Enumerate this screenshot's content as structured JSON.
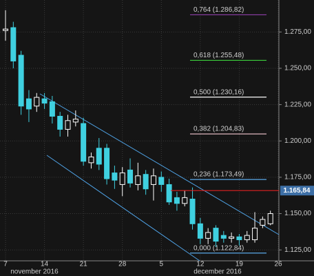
{
  "chart_data": {
    "type": "candlestick",
    "categories": [
      "7",
      null,
      null,
      null,
      null,
      "14",
      null,
      null,
      null,
      null,
      "21",
      null,
      null,
      null,
      null,
      "28",
      null,
      null,
      null,
      null,
      "5",
      null,
      null,
      null,
      null,
      "12",
      null,
      null,
      null,
      null,
      "19",
      null,
      null,
      null,
      null,
      "26"
    ],
    "x_group_labels": [
      "november 2016",
      "december 2016"
    ],
    "open": [
      1.276,
      1.278,
      1.259,
      1.229,
      1.224,
      1.229,
      1.227,
      1.217,
      1.208,
      1.213,
      1.212,
      1.185,
      1.195,
      1.195,
      1.178,
      1.17,
      1.18,
      1.17,
      1.177,
      1.17,
      1.175,
      1.17,
      1.161,
      1.157,
      1.16,
      1.143,
      1.133,
      1.14,
      1.135,
      1.133,
      1.134,
      1.132,
      1.132,
      1.142,
      1.143,
      null
    ],
    "high": [
      1.29,
      1.282,
      1.262,
      1.235,
      1.233,
      1.233,
      1.231,
      1.22,
      1.218,
      1.221,
      1.216,
      1.192,
      1.202,
      1.198,
      1.183,
      1.182,
      1.188,
      1.185,
      1.18,
      1.181,
      1.179,
      1.174,
      1.165,
      1.166,
      1.168,
      1.147,
      1.14,
      1.142,
      1.138,
      1.137,
      1.136,
      1.138,
      1.151,
      1.148,
      1.152,
      null
    ],
    "low": [
      1.269,
      1.25,
      1.218,
      1.213,
      1.22,
      1.222,
      1.212,
      1.203,
      1.203,
      1.21,
      1.183,
      1.181,
      1.18,
      1.17,
      1.167,
      1.162,
      1.168,
      1.166,
      1.163,
      1.159,
      1.165,
      1.156,
      1.152,
      1.155,
      1.139,
      1.129,
      1.129,
      1.127,
      1.13,
      1.13,
      1.128,
      1.13,
      1.13,
      1.14,
      1.142,
      null
    ],
    "close": [
      1.277,
      1.255,
      1.224,
      1.222,
      1.23,
      1.226,
      1.217,
      1.208,
      1.214,
      1.215,
      1.186,
      1.189,
      1.184,
      1.174,
      1.173,
      1.178,
      1.171,
      1.176,
      1.167,
      1.176,
      1.17,
      1.158,
      1.157,
      1.161,
      1.143,
      1.133,
      1.137,
      1.131,
      1.133,
      1.134,
      1.132,
      1.135,
      1.14,
      1.146,
      1.15,
      null
    ],
    "up_color": "#ffffff",
    "down_color": "#3fd0e0",
    "ylim": [
      1.1175,
      1.297
    ],
    "yticks": [
      {
        "value": 1.125,
        "label": "1.125,00"
      },
      {
        "value": 1.15,
        "label": "1.150,00"
      },
      {
        "value": 1.175,
        "label": "1.175,00"
      },
      {
        "value": 1.2,
        "label": "1.200,00"
      },
      {
        "value": 1.225,
        "label": "1.225,00"
      },
      {
        "value": 1.25,
        "label": "1.250,00"
      },
      {
        "value": 1.275,
        "label": "1.275,00"
      }
    ],
    "grid": true,
    "levels": [
      {
        "value": 1.28682,
        "label": "0,764 (1.286,82)",
        "color": "#8e3fa8"
      },
      {
        "value": 1.25548,
        "label": "0,618 (1.255,48)",
        "color": "#3ccf3c"
      },
      {
        "value": 1.23016,
        "label": "0,500 (1.230,16)",
        "color": "#ffffff"
      },
      {
        "value": 1.20483,
        "label": "0,382 (1.204,83)",
        "color": "#e0b8c0"
      },
      {
        "value": 1.17349,
        "label": "0,236 (1.173,49)",
        "color": "#5aa8e8"
      },
      {
        "value": 1.12284,
        "label": "0,000 (1.122,84)",
        "color": "#5aa8e8"
      }
    ],
    "last_price": {
      "value": 1.16584,
      "label": "1.165,84",
      "color": "#e02020"
    }
  }
}
